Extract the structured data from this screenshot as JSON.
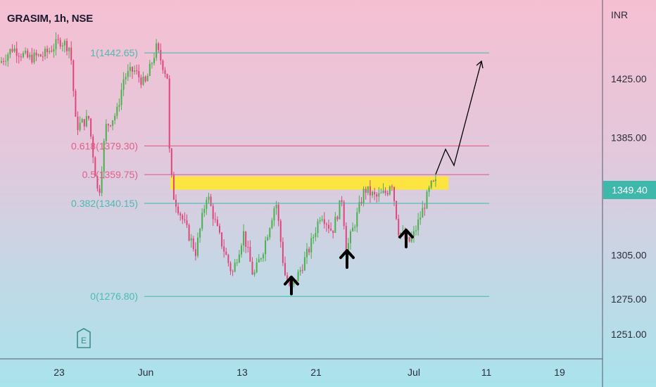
{
  "header": {
    "symbol": "GRASIM, 1h, NSE"
  },
  "axis": {
    "currency": "INR"
  },
  "badges": {
    "event_label": "E"
  },
  "chart_data": {
    "type": "candlestick",
    "title": "GRASIM, 1h, NSE",
    "xlabel": "",
    "ylabel": "INR",
    "ylim": [
      1236,
      1466
    ],
    "x_tick_labels": [
      "23",
      "Jun",
      "13",
      "21",
      "Jul",
      "11",
      "19"
    ],
    "y_tick_labels": [
      1425,
      1385,
      1305,
      1275,
      1251
    ],
    "current_price": 1349.4,
    "fibonacci_levels": [
      {
        "label": "1(1442.65)",
        "level": 1,
        "price": 1442.65,
        "color": "#3fb8ac"
      },
      {
        "label": "0.618(1379.30)",
        "level": 0.618,
        "price": 1379.3,
        "color": "#e35480"
      },
      {
        "label": "0.5(1359.75)",
        "level": 0.5,
        "price": 1359.75,
        "color": "#e35480"
      },
      {
        "label": "0.382(1340.15)",
        "level": 0.382,
        "price": 1340.15,
        "color": "#3fb8ac"
      },
      {
        "label": "0(1276.80)",
        "level": 0,
        "price": 1276.8,
        "color": "#3fb8ac"
      }
    ],
    "resistance_zone": {
      "low": 1349.5,
      "high": 1358.5,
      "color": "#ffe633"
    },
    "projection_path": [
      1360,
      1377,
      1366,
      1437
    ],
    "bottom_markers": [
      {
        "price_at_base": 1290,
        "label": ""
      },
      {
        "price_at_base": 1308,
        "label": ""
      },
      {
        "price_at_base": 1322,
        "label": ""
      }
    ],
    "colors": {
      "up": "#4caf50",
      "down": "#e0457b",
      "projection": "#000000"
    }
  }
}
